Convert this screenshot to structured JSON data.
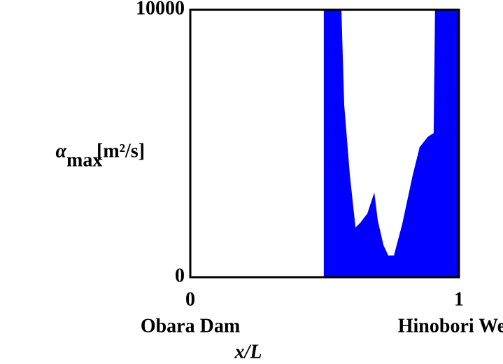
{
  "chart_data": {
    "type": "area",
    "x": [
      0.497,
      0.5625,
      0.573,
      0.594,
      0.615,
      0.633,
      0.659,
      0.685,
      0.698,
      0.719,
      0.737,
      0.758,
      0.789,
      0.828,
      0.854,
      0.885,
      0.906,
      0.911,
      1
    ],
    "values": [
      10000,
      10000,
      6440,
      3820,
      1860,
      2040,
      2380,
      3170,
      2120,
      1200,
      810,
      810,
      1990,
      3820,
      4870,
      5260,
      5390,
      10000,
      10000
    ],
    "color": "#0000ff",
    "xlim": [
      0,
      1
    ],
    "ylim": [
      0,
      10000
    ],
    "xticks": [
      0,
      1
    ],
    "yticks": [
      0,
      10000
    ],
    "x_tick_notes": [
      "Obara Dam",
      "Hinobori Weir"
    ],
    "xlabel": "x/L",
    "ylabel": {
      "symbol": "α",
      "subscript": "max",
      "unit": "[m²/s]"
    }
  }
}
